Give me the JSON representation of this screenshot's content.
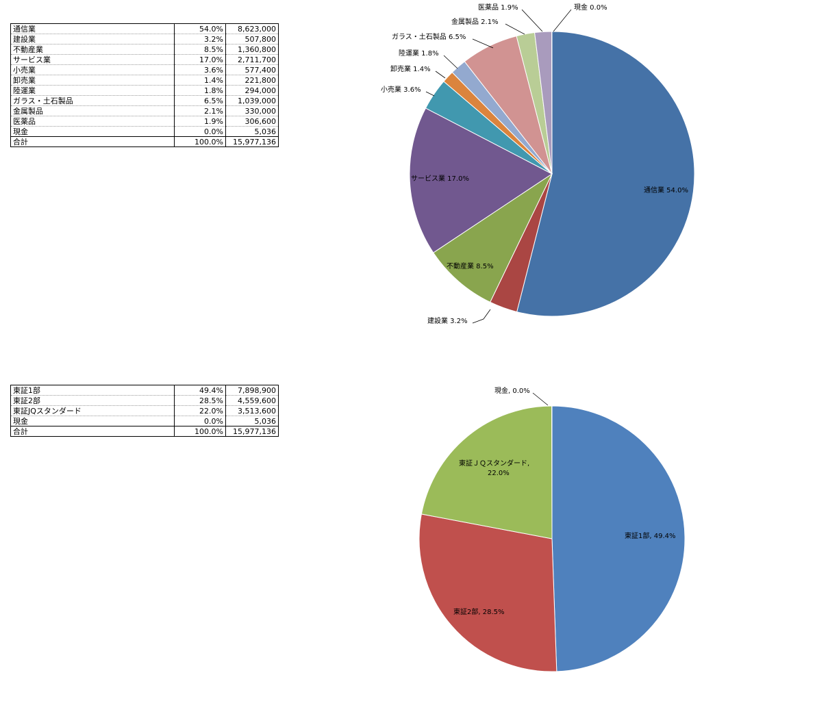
{
  "table1": {
    "rows": [
      {
        "name": "通信業",
        "pct": "54.0%",
        "value": "8,623,000"
      },
      {
        "name": "建設業",
        "pct": "3.2%",
        "value": "507,800"
      },
      {
        "name": "不動産業",
        "pct": "8.5%",
        "value": "1,360,800"
      },
      {
        "name": "サービス業",
        "pct": "17.0%",
        "value": "2,711,700"
      },
      {
        "name": "小売業",
        "pct": "3.6%",
        "value": "577,400"
      },
      {
        "name": "卸売業",
        "pct": "1.4%",
        "value": "221,800"
      },
      {
        "name": "陸運業",
        "pct": "1.8%",
        "value": "294,000"
      },
      {
        "name": "ガラス・土石製品",
        "pct": "6.5%",
        "value": "1,039,000"
      },
      {
        "name": "金属製品",
        "pct": "2.1%",
        "value": "330,000"
      },
      {
        "name": "医薬品",
        "pct": "1.9%",
        "value": "306,600"
      },
      {
        "name": "現金",
        "pct": "0.0%",
        "value": "5,036"
      }
    ],
    "total": {
      "name": "合計",
      "pct": "100.0%",
      "value": "15,977,136"
    }
  },
  "table2": {
    "rows": [
      {
        "name": "東証1部",
        "pct": "49.4%",
        "value": "7,898,900"
      },
      {
        "name": "東証2部",
        "pct": "28.5%",
        "value": "4,559,600"
      },
      {
        "name": "東証JQスタンダード",
        "pct": "22.0%",
        "value": "3,513,600"
      },
      {
        "name": "現金",
        "pct": "0.0%",
        "value": "5,036"
      }
    ],
    "total": {
      "name": "合計",
      "pct": "100.0%",
      "value": "15,977,136"
    }
  },
  "chart_data": [
    {
      "type": "pie",
      "slices": [
        {
          "label": "通信業 54.0%",
          "value": 8623000,
          "color": "#4572a7"
        },
        {
          "label": "建設業 3.2%",
          "value": 507800,
          "color": "#aa4643"
        },
        {
          "label": "不動産業 8.5%",
          "value": 1360800,
          "color": "#89a54e"
        },
        {
          "label": "サービス業 17.0%",
          "value": 2711700,
          "color": "#71588f"
        },
        {
          "label": "小売業 3.6%",
          "value": 577400,
          "color": "#4198af"
        },
        {
          "label": "卸売業 1.4%",
          "value": 221800,
          "color": "#db843d"
        },
        {
          "label": "陸運業 1.8%",
          "value": 294000,
          "color": "#93a9cf"
        },
        {
          "label": "ガラス・土石製品 6.5%",
          "value": 1039000,
          "color": "#d19392"
        },
        {
          "label": "金属製品 2.1%",
          "value": 330000,
          "color": "#b9cd96"
        },
        {
          "label": "医薬品 1.9%",
          "value": 306600,
          "color": "#a99bbd"
        },
        {
          "label": "現金 0.0%",
          "value": 5036,
          "color": "#92cddc"
        }
      ]
    },
    {
      "type": "pie",
      "slices": [
        {
          "label": "東証1部, 49.4%",
          "value": 7898900,
          "color": "#4f81bd"
        },
        {
          "label": "東証2部, 28.5%",
          "value": 4559600,
          "color": "#c0504d"
        },
        {
          "label": "東証ＪＱスタンダード, 22.0%",
          "value": 3513600,
          "color": "#9bbb59"
        },
        {
          "label": "現金, 0.0%",
          "value": 5036,
          "color": "#8064a2"
        }
      ]
    }
  ]
}
